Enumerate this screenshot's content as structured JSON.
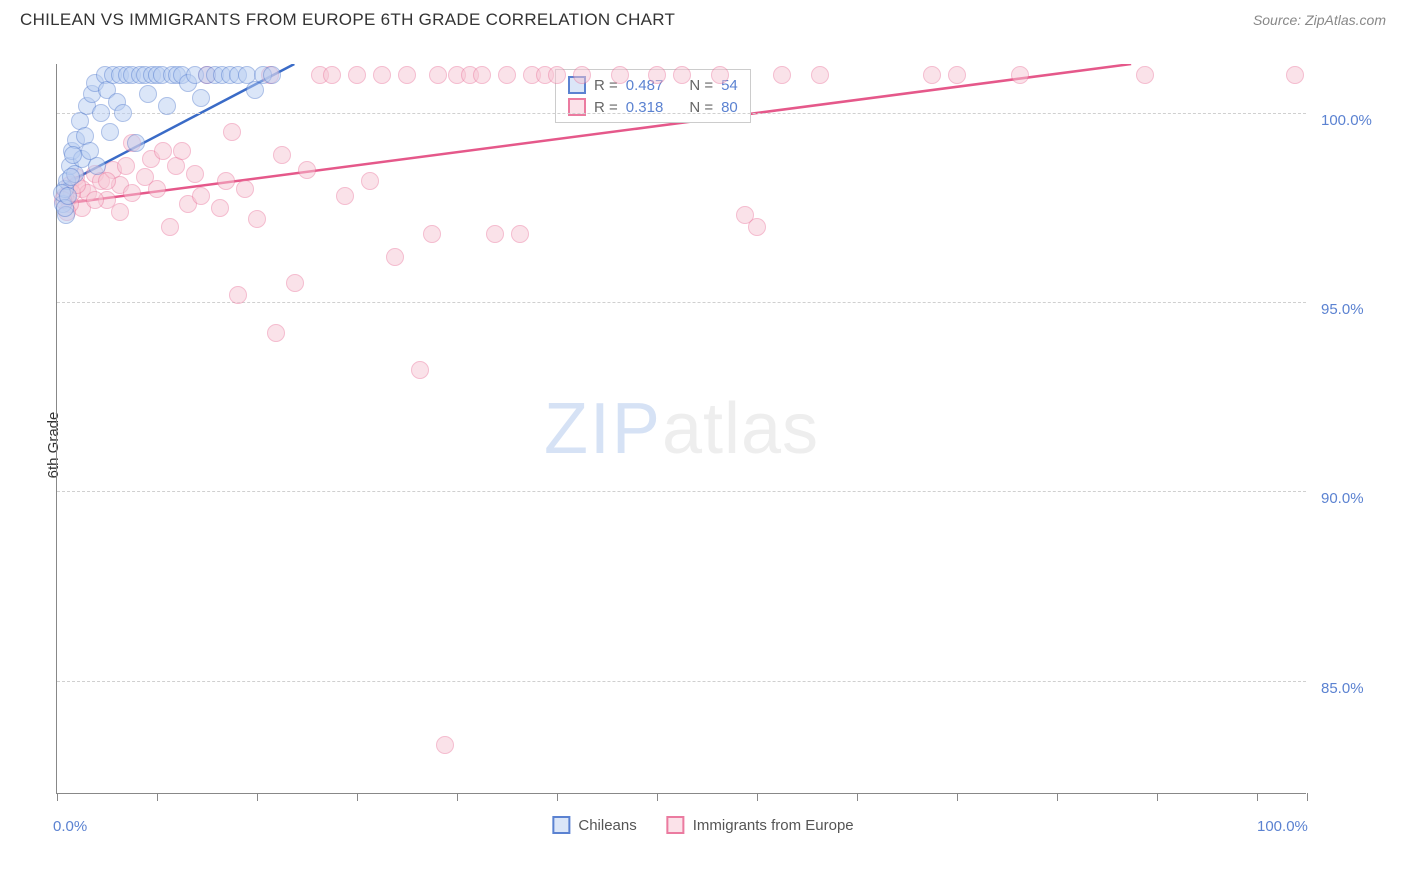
{
  "header": {
    "title": "CHILEAN VS IMMIGRANTS FROM EUROPE 6TH GRADE CORRELATION CHART",
    "source": "Source: ZipAtlas.com"
  },
  "ylabel": "6th Grade",
  "watermark": {
    "left": "ZIP",
    "right": "atlas"
  },
  "chart": {
    "type": "scatter",
    "xlim": [
      0,
      100
    ],
    "ylim": [
      82,
      101.3
    ],
    "x_ticks": [
      0,
      8,
      16,
      24,
      32,
      40,
      48,
      56,
      64,
      72,
      80,
      88,
      96,
      100
    ],
    "x_tick_labels": {
      "0": "0.0%",
      "100": "100.0%"
    },
    "y_gridlines": [
      85,
      90,
      95,
      100
    ],
    "y_tick_labels": [
      "85.0%",
      "90.0%",
      "95.0%",
      "100.0%"
    ],
    "background_color": "#ffffff",
    "grid_color": "#d0d0d0",
    "axis_color": "#888888",
    "tick_label_color": "#5b82d1",
    "marker_radius": 9,
    "marker_stroke_width": 1.5,
    "series": [
      {
        "name": "Chileans",
        "fill_color": "#b8cef2",
        "stroke_color": "#5b82d1",
        "fill_opacity": 0.5,
        "R": "0.487",
        "N": "54",
        "trend": {
          "x1": 0.5,
          "y1": 98.1,
          "x2": 19,
          "y2": 101.3,
          "color": "#3a6bc7",
          "width": 2.5
        },
        "points": [
          [
            0.5,
            97.6
          ],
          [
            0.6,
            98.0
          ],
          [
            0.8,
            98.2
          ],
          [
            0.7,
            97.3
          ],
          [
            1.0,
            98.6
          ],
          [
            1.2,
            99.0
          ],
          [
            1.4,
            98.4
          ],
          [
            1.5,
            99.3
          ],
          [
            1.8,
            99.8
          ],
          [
            2.0,
            98.8
          ],
          [
            2.2,
            99.4
          ],
          [
            2.4,
            100.2
          ],
          [
            2.6,
            99.0
          ],
          [
            2.8,
            100.5
          ],
          [
            3.0,
            100.8
          ],
          [
            3.2,
            98.6
          ],
          [
            3.5,
            100.0
          ],
          [
            3.8,
            101.0
          ],
          [
            4.0,
            100.6
          ],
          [
            4.2,
            99.5
          ],
          [
            4.5,
            101.0
          ],
          [
            4.8,
            100.3
          ],
          [
            5.0,
            101.0
          ],
          [
            5.3,
            100.0
          ],
          [
            5.6,
            101.0
          ],
          [
            6.0,
            101.0
          ],
          [
            6.3,
            99.2
          ],
          [
            6.6,
            101.0
          ],
          [
            7.0,
            101.0
          ],
          [
            7.3,
            100.5
          ],
          [
            7.6,
            101.0
          ],
          [
            8.0,
            101.0
          ],
          [
            8.4,
            101.0
          ],
          [
            8.8,
            100.2
          ],
          [
            9.2,
            101.0
          ],
          [
            9.6,
            101.0
          ],
          [
            10.0,
            101.0
          ],
          [
            10.5,
            100.8
          ],
          [
            11.0,
            101.0
          ],
          [
            11.5,
            100.4
          ],
          [
            12.0,
            101.0
          ],
          [
            12.6,
            101.0
          ],
          [
            13.2,
            101.0
          ],
          [
            13.8,
            101.0
          ],
          [
            14.5,
            101.0
          ],
          [
            15.2,
            101.0
          ],
          [
            15.8,
            100.6
          ],
          [
            16.5,
            101.0
          ],
          [
            17.2,
            101.0
          ],
          [
            0.4,
            97.9
          ],
          [
            0.6,
            97.5
          ],
          [
            0.9,
            97.8
          ],
          [
            1.1,
            98.3
          ],
          [
            1.3,
            98.9
          ]
        ]
      },
      {
        "name": "Immigrants from Europe",
        "fill_color": "#f7c6d4",
        "stroke_color": "#eb7ba0",
        "fill_opacity": 0.5,
        "R": "0.318",
        "N": "80",
        "trend": {
          "x1": 0.5,
          "y1": 97.6,
          "x2": 86,
          "y2": 101.3,
          "color": "#e5588a",
          "width": 2.5
        },
        "points": [
          [
            0.8,
            97.8
          ],
          [
            1.0,
            98.1
          ],
          [
            1.5,
            98.3
          ],
          [
            2.0,
            98.0
          ],
          [
            2.5,
            97.9
          ],
          [
            3.0,
            98.4
          ],
          [
            3.5,
            98.2
          ],
          [
            4.0,
            97.7
          ],
          [
            4.5,
            98.5
          ],
          [
            5.0,
            98.1
          ],
          [
            5.5,
            98.6
          ],
          [
            6.0,
            97.9
          ],
          [
            7.0,
            98.3
          ],
          [
            8.0,
            98.0
          ],
          [
            9.0,
            97.0
          ],
          [
            9.5,
            98.6
          ],
          [
            10.0,
            99.0
          ],
          [
            11.0,
            98.4
          ],
          [
            12.0,
            101.0
          ],
          [
            13.0,
            97.5
          ],
          [
            14.0,
            99.5
          ],
          [
            15.0,
            98.0
          ],
          [
            14.5,
            95.2
          ],
          [
            16.0,
            97.2
          ],
          [
            17.0,
            101.0
          ],
          [
            17.5,
            94.2
          ],
          [
            18.0,
            98.9
          ],
          [
            19.0,
            95.5
          ],
          [
            20.0,
            98.5
          ],
          [
            21.0,
            101.0
          ],
          [
            22.0,
            101.0
          ],
          [
            23.0,
            97.8
          ],
          [
            24.0,
            101.0
          ],
          [
            25.0,
            98.2
          ],
          [
            26.0,
            101.0
          ],
          [
            27.0,
            96.2
          ],
          [
            28.0,
            101.0
          ],
          [
            29.0,
            93.2
          ],
          [
            30.0,
            96.8
          ],
          [
            30.5,
            101.0
          ],
          [
            31.0,
            83.3
          ],
          [
            32.0,
            101.0
          ],
          [
            33.0,
            101.0
          ],
          [
            34.0,
            101.0
          ],
          [
            35.0,
            96.8
          ],
          [
            36.0,
            101.0
          ],
          [
            37.0,
            96.8
          ],
          [
            38.0,
            101.0
          ],
          [
            39.0,
            101.0
          ],
          [
            40.0,
            101.0
          ],
          [
            42.0,
            101.0
          ],
          [
            45.0,
            101.0
          ],
          [
            48.0,
            101.0
          ],
          [
            50.0,
            101.0
          ],
          [
            53.0,
            101.0
          ],
          [
            55.0,
            97.3
          ],
          [
            56.0,
            97.0
          ],
          [
            58.0,
            101.0
          ],
          [
            61.0,
            101.0
          ],
          [
            70.0,
            101.0
          ],
          [
            72.0,
            101.0
          ],
          [
            77.0,
            101.0
          ],
          [
            87.0,
            101.0
          ],
          [
            99.0,
            101.0
          ],
          [
            5.0,
            97.4
          ],
          [
            6.0,
            99.2
          ],
          [
            7.5,
            98.8
          ],
          [
            8.5,
            99.0
          ],
          [
            10.5,
            97.6
          ],
          [
            11.5,
            97.8
          ],
          [
            13.5,
            98.2
          ],
          [
            2.0,
            97.5
          ],
          [
            3.0,
            97.7
          ],
          [
            4.0,
            98.2
          ],
          [
            1.0,
            97.6
          ],
          [
            0.6,
            97.8
          ],
          [
            0.8,
            97.4
          ],
          [
            1.2,
            97.9
          ],
          [
            1.6,
            98.1
          ],
          [
            0.5,
            97.7
          ]
        ]
      }
    ]
  },
  "legend_box": {
    "row1": {
      "R_label": "R =",
      "R_val": "0.487",
      "N_label": "N =",
      "N_val": "54"
    },
    "row2": {
      "R_label": "R =",
      "R_val": "0.318",
      "N_label": "N =",
      "N_val": "80"
    }
  },
  "bottom_legend": {
    "item1": "Chileans",
    "item2": "Immigrants from Europe"
  }
}
